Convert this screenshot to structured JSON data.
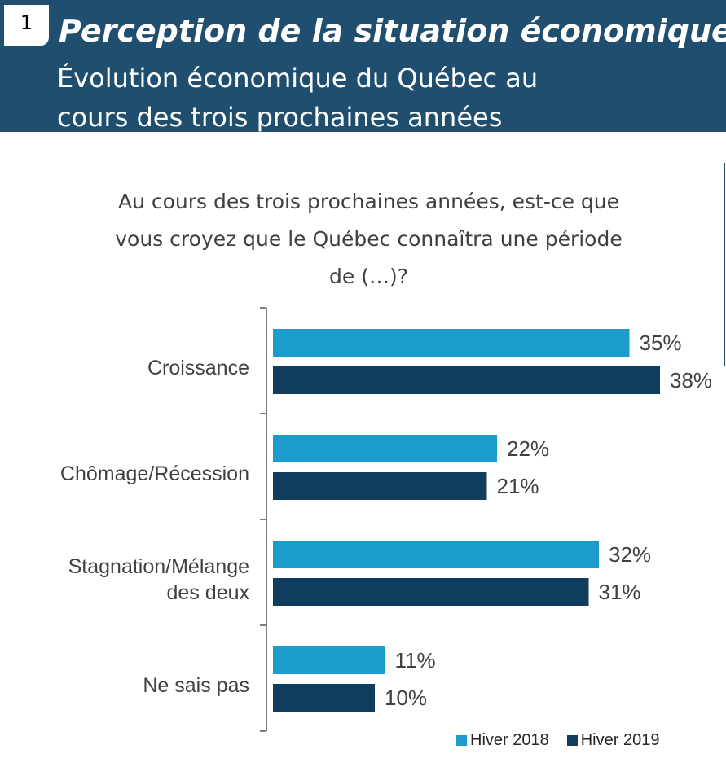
{
  "header": {
    "slide_number": "1",
    "title": "Perception de la situation économique",
    "subtitle_line1": "Évolution économique du Québec au",
    "subtitle_line2": "cours des trois prochaines années"
  },
  "question": {
    "line1": "Au cours des trois prochaines années, est-ce que",
    "line2": "vous croyez que le Québec connaîtra une période",
    "line3": "de (…)?"
  },
  "colors": {
    "header_bg": "#1f4e6e",
    "series_2018": "#1b9ccc",
    "series_2019": "#103d5e",
    "axis": "#7f7f7f",
    "label_text": "#404040"
  },
  "chart_data": {
    "type": "bar",
    "orientation": "horizontal",
    "categories": [
      [
        "Croissance"
      ],
      [
        "Chômage/Récession"
      ],
      [
        "Stagnation/Mélange",
        "des deux"
      ],
      [
        "Ne sais pas"
      ]
    ],
    "series": [
      {
        "name": "Hiver 2018",
        "values": [
          35,
          22,
          32,
          11
        ],
        "labels": [
          "35%",
          "22%",
          "32%",
          "11%"
        ]
      },
      {
        "name": "Hiver 2019",
        "values": [
          38,
          21,
          31,
          10
        ],
        "labels": [
          "38%",
          "21%",
          "31%",
          "10%"
        ]
      }
    ],
    "value_unit": "%",
    "xlim": [
      0,
      40
    ],
    "grid": false,
    "legend_position": "bottom-right"
  }
}
